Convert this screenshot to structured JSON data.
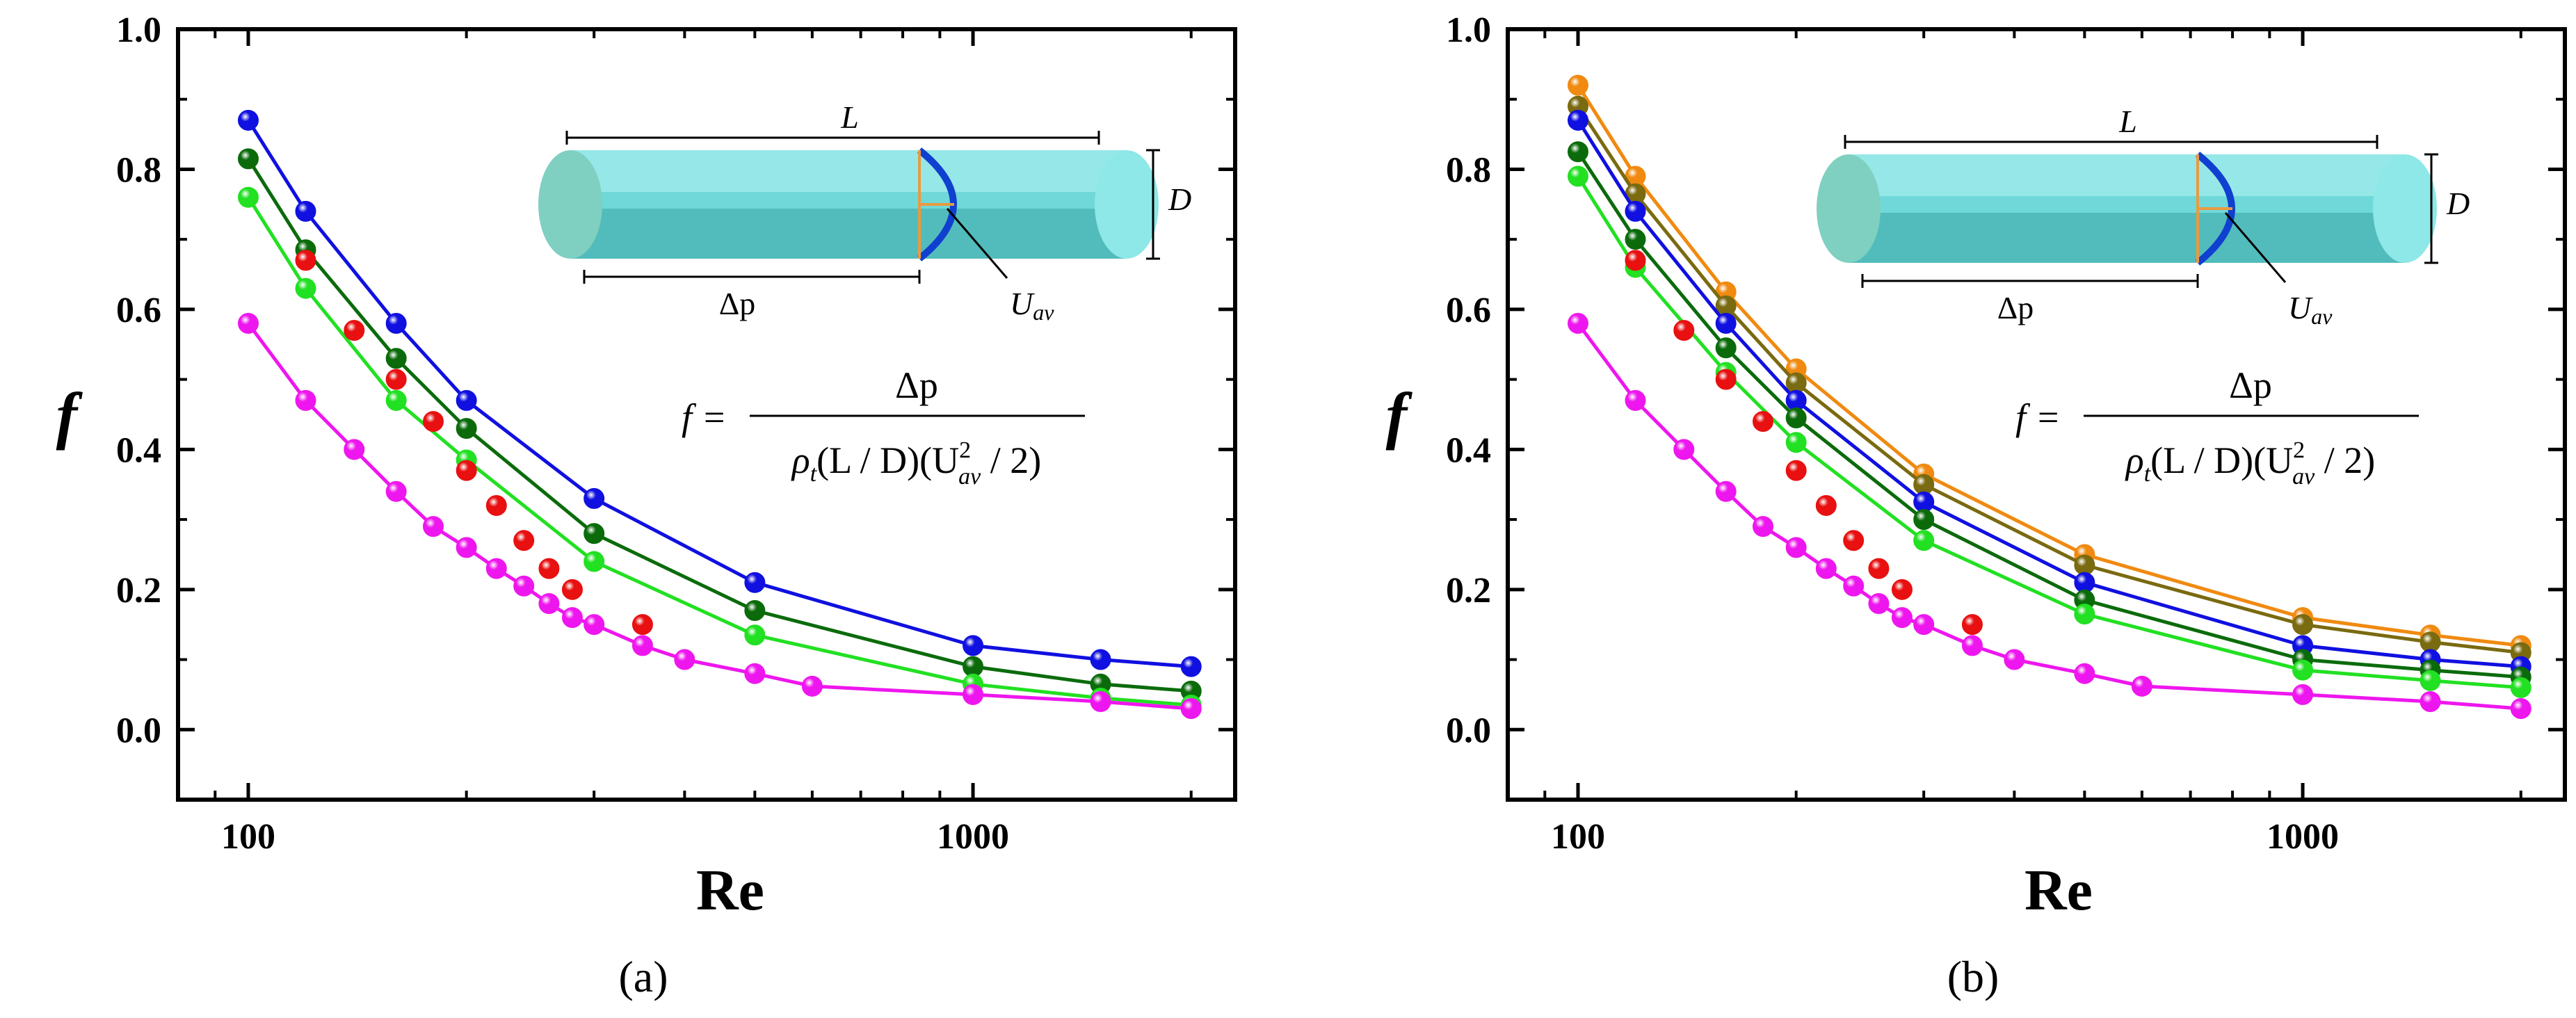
{
  "chart_data": [
    {
      "type": "scatter",
      "panel_label": "(a)",
      "xlabel": "Re",
      "ylabel": "f",
      "x_scale": "log",
      "xlim": [
        80,
        2300
      ],
      "ylim": [
        -0.1,
        1.0
      ],
      "xticks": [
        "100",
        "1000"
      ],
      "yticks": [
        "0.0",
        "0.2",
        "0.4",
        "0.6",
        "0.8",
        "1.0"
      ],
      "grid": false,
      "legend": "none",
      "inset": {
        "length_label": "L",
        "diameter_label": "D",
        "pressure_label": "Δp",
        "velocity_label": "U",
        "velocity_sub": "av"
      },
      "equation": {
        "lhs": "f =",
        "numerator": "Δp",
        "denominator_prefix": "ρ",
        "denominator_sub": "t",
        "denominator_mid": "(L / D)(U",
        "denominator_sup": "2",
        "denominator_sub2": "av",
        "denominator_end": " / 2)"
      },
      "series": [
        {
          "color": "#1010e0",
          "line": true,
          "points": [
            [
              100,
              0.87
            ],
            [
              120,
              0.74
            ],
            [
              160,
              0.58
            ],
            [
              200,
              0.47
            ],
            [
              300,
              0.33
            ],
            [
              500,
              0.21
            ],
            [
              1000,
              0.12
            ],
            [
              1500,
              0.1
            ],
            [
              2000,
              0.09
            ]
          ]
        },
        {
          "color": "#0b6b0b",
          "line": true,
          "points": [
            [
              100,
              0.815
            ],
            [
              120,
              0.685
            ],
            [
              160,
              0.53
            ],
            [
              200,
              0.43
            ],
            [
              300,
              0.28
            ],
            [
              500,
              0.17
            ],
            [
              1000,
              0.09
            ],
            [
              1500,
              0.065
            ],
            [
              2000,
              0.055
            ]
          ]
        },
        {
          "color": "#22e022",
          "line": true,
          "points": [
            [
              100,
              0.76
            ],
            [
              120,
              0.63
            ],
            [
              160,
              0.47
            ],
            [
              200,
              0.385
            ],
            [
              300,
              0.24
            ],
            [
              500,
              0.135
            ],
            [
              1000,
              0.065
            ],
            [
              1500,
              0.045
            ],
            [
              2000,
              0.035
            ]
          ]
        },
        {
          "color": "#e81010",
          "line": false,
          "points": [
            [
              120,
              0.67
            ],
            [
              140,
              0.57
            ],
            [
              160,
              0.5
            ],
            [
              180,
              0.44
            ],
            [
              200,
              0.37
            ],
            [
              220,
              0.32
            ],
            [
              240,
              0.27
            ],
            [
              260,
              0.23
            ],
            [
              280,
              0.2
            ],
            [
              350,
              0.15
            ]
          ]
        },
        {
          "color": "#ee16ee",
          "line": true,
          "points": [
            [
              100,
              0.58
            ],
            [
              120,
              0.47
            ],
            [
              140,
              0.4
            ],
            [
              160,
              0.34
            ],
            [
              180,
              0.29
            ],
            [
              200,
              0.26
            ],
            [
              220,
              0.23
            ],
            [
              240,
              0.205
            ],
            [
              260,
              0.18
            ],
            [
              280,
              0.16
            ],
            [
              300,
              0.15
            ],
            [
              350,
              0.12
            ],
            [
              400,
              0.1
            ],
            [
              500,
              0.08
            ],
            [
              600,
              0.062
            ],
            [
              1000,
              0.05
            ],
            [
              1500,
              0.04
            ],
            [
              2000,
              0.03
            ]
          ]
        }
      ]
    },
    {
      "type": "scatter",
      "panel_label": "(b)",
      "xlabel": "Re",
      "ylabel": "f",
      "x_scale": "log",
      "xlim": [
        80,
        2300
      ],
      "ylim": [
        -0.1,
        1.0
      ],
      "xticks": [
        "100",
        "1000"
      ],
      "yticks": [
        "0.0",
        "0.2",
        "0.4",
        "0.6",
        "0.8",
        "1.0"
      ],
      "grid": false,
      "legend": "none",
      "inset": {
        "length_label": "L",
        "diameter_label": "D",
        "pressure_label": "Δp",
        "velocity_label": "U",
        "velocity_sub": "av"
      },
      "equation": {
        "lhs": "f =",
        "numerator": "Δp",
        "denominator_prefix": "ρ",
        "denominator_sub": "t",
        "denominator_mid": "(L / D)(U",
        "denominator_sup": "2",
        "denominator_sub2": "av",
        "denominator_end": " / 2)"
      },
      "series": [
        {
          "color": "#f08a10",
          "line": true,
          "points": [
            [
              100,
              0.92
            ],
            [
              120,
              0.79
            ],
            [
              160,
              0.625
            ],
            [
              200,
              0.515
            ],
            [
              300,
              0.365
            ],
            [
              500,
              0.25
            ],
            [
              1000,
              0.16
            ],
            [
              1500,
              0.135
            ],
            [
              2000,
              0.12
            ]
          ]
        },
        {
          "color": "#7a6a10",
          "line": true,
          "points": [
            [
              100,
              0.89
            ],
            [
              120,
              0.765
            ],
            [
              160,
              0.605
            ],
            [
              200,
              0.495
            ],
            [
              300,
              0.35
            ],
            [
              500,
              0.235
            ],
            [
              1000,
              0.15
            ],
            [
              1500,
              0.125
            ],
            [
              2000,
              0.11
            ]
          ]
        },
        {
          "color": "#1010e0",
          "line": true,
          "points": [
            [
              100,
              0.87
            ],
            [
              120,
              0.74
            ],
            [
              160,
              0.58
            ],
            [
              200,
              0.47
            ],
            [
              300,
              0.325
            ],
            [
              500,
              0.21
            ],
            [
              1000,
              0.12
            ],
            [
              1500,
              0.1
            ],
            [
              2000,
              0.09
            ]
          ]
        },
        {
          "color": "#0b6b0b",
          "line": true,
          "points": [
            [
              100,
              0.825
            ],
            [
              120,
              0.7
            ],
            [
              160,
              0.545
            ],
            [
              200,
              0.445
            ],
            [
              300,
              0.3
            ],
            [
              500,
              0.185
            ],
            [
              1000,
              0.1
            ],
            [
              1500,
              0.085
            ],
            [
              2000,
              0.075
            ]
          ]
        },
        {
          "color": "#22e022",
          "line": true,
          "points": [
            [
              100,
              0.79
            ],
            [
              120,
              0.66
            ],
            [
              160,
              0.51
            ],
            [
              200,
              0.41
            ],
            [
              300,
              0.27
            ],
            [
              500,
              0.165
            ],
            [
              1000,
              0.085
            ],
            [
              1500,
              0.07
            ],
            [
              2000,
              0.06
            ]
          ]
        },
        {
          "color": "#e81010",
          "line": false,
          "points": [
            [
              120,
              0.67
            ],
            [
              140,
              0.57
            ],
            [
              160,
              0.5
            ],
            [
              180,
              0.44
            ],
            [
              200,
              0.37
            ],
            [
              220,
              0.32
            ],
            [
              240,
              0.27
            ],
            [
              260,
              0.23
            ],
            [
              280,
              0.2
            ],
            [
              350,
              0.15
            ]
          ]
        },
        {
          "color": "#ee16ee",
          "line": true,
          "points": [
            [
              100,
              0.58
            ],
            [
              120,
              0.47
            ],
            [
              140,
              0.4
            ],
            [
              160,
              0.34
            ],
            [
              180,
              0.29
            ],
            [
              200,
              0.26
            ],
            [
              220,
              0.23
            ],
            [
              240,
              0.205
            ],
            [
              260,
              0.18
            ],
            [
              280,
              0.16
            ],
            [
              300,
              0.15
            ],
            [
              350,
              0.12
            ],
            [
              400,
              0.1
            ],
            [
              500,
              0.08
            ],
            [
              600,
              0.062
            ],
            [
              1000,
              0.05
            ],
            [
              1500,
              0.04
            ],
            [
              2000,
              0.03
            ]
          ]
        }
      ]
    }
  ]
}
